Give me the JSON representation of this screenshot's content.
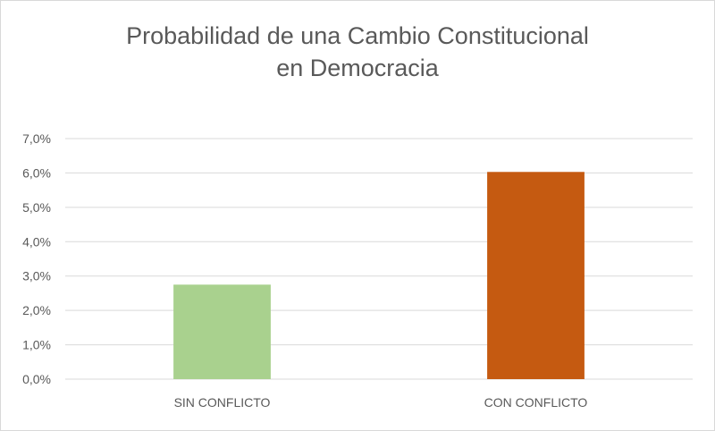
{
  "chart_data": {
    "type": "bar",
    "title_lines": [
      "Probabilidad de una Cambio Constitucional",
      "en Democracia"
    ],
    "categories": [
      "SIN CONFLICTO",
      "CON CONFLICTO"
    ],
    "values": [
      0.0275,
      0.0603
    ],
    "colors": [
      "#a9d18e",
      "#c55a11"
    ],
    "ylim": [
      0,
      0.07
    ],
    "yticks": [
      0,
      0.01,
      0.02,
      0.03,
      0.04,
      0.05,
      0.06,
      0.07
    ],
    "ytick_labels": [
      "0,0%",
      "1,0%",
      "2,0%",
      "3,0%",
      "4,0%",
      "5,0%",
      "6,0%",
      "7,0%"
    ],
    "grid": true,
    "legend": "none"
  }
}
